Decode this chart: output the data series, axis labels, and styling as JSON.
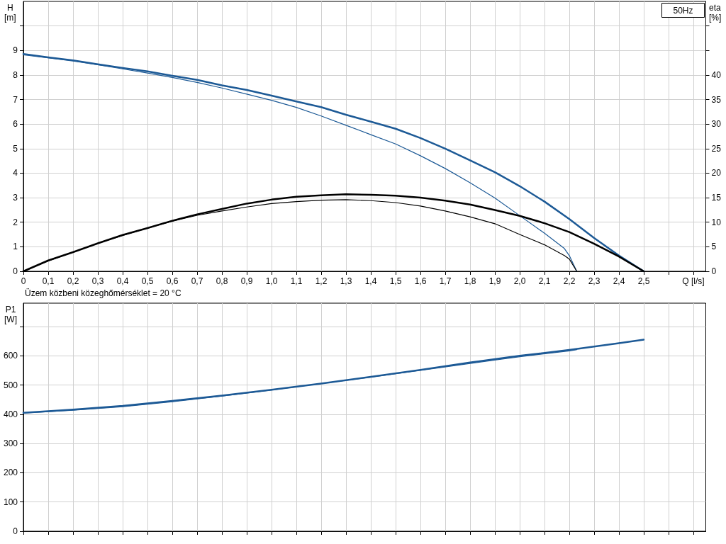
{
  "chart_data": [
    {
      "type": "line",
      "ylabel": "H [m]",
      "y2label": "eta [%]",
      "xlabel": "Q [l/s]",
      "annotations": [
        "50Hz",
        "Üzem közbeni közeghőmérséklet = 20 °C"
      ],
      "xlim": [
        0,
        2.75
      ],
      "ylim": [
        0,
        11
      ],
      "y2lim": [
        0,
        55
      ],
      "xticks": [
        {
          "value": 0,
          "label": "0"
        },
        {
          "value": 0.1,
          "label": "0,1"
        },
        {
          "value": 0.2,
          "label": "0,2"
        },
        {
          "value": 0.3,
          "label": "0,3"
        },
        {
          "value": 0.4,
          "label": "0,4"
        },
        {
          "value": 0.5,
          "label": "0,5"
        },
        {
          "value": 0.6,
          "label": "0,6"
        },
        {
          "value": 0.7,
          "label": "0,7"
        },
        {
          "value": 0.8,
          "label": "0,8"
        },
        {
          "value": 0.9,
          "label": "0,9"
        },
        {
          "value": 1.0,
          "label": "1,0"
        },
        {
          "value": 1.1,
          "label": "1,1"
        },
        {
          "value": 1.2,
          "label": "1,2"
        },
        {
          "value": 1.3,
          "label": "1,3"
        },
        {
          "value": 1.4,
          "label": "1,4"
        },
        {
          "value": 1.5,
          "label": "1,5"
        },
        {
          "value": 1.6,
          "label": "1,6"
        },
        {
          "value": 1.7,
          "label": "1,7"
        },
        {
          "value": 1.8,
          "label": "1,8"
        },
        {
          "value": 1.9,
          "label": "1,9"
        },
        {
          "value": 2.0,
          "label": "2,0"
        },
        {
          "value": 2.1,
          "label": "2,1"
        },
        {
          "value": 2.2,
          "label": "2,2"
        },
        {
          "value": 2.3,
          "label": "2,3"
        },
        {
          "value": 2.4,
          "label": "2,4"
        },
        {
          "value": 2.5,
          "label": "2,5"
        },
        {
          "value": 2.6,
          "label": null
        },
        {
          "value": 2.7,
          "label": null
        }
      ],
      "yticks": [
        0,
        1,
        2,
        3,
        4,
        5,
        6,
        7,
        8,
        9,
        {
          "value": 10,
          "label": null
        }
      ],
      "y2ticks": [
        0,
        5,
        10,
        15,
        20,
        25,
        30,
        35,
        40,
        {
          "value": 45,
          "label": null
        },
        {
          "value": 50,
          "label": null
        }
      ],
      "grid": true,
      "marker": "none",
      "line_style": "solid",
      "series": [
        {
          "color": "#1d5a96",
          "x": [
            0,
            0.1,
            0.2,
            0.3,
            0.4,
            0.5,
            0.6,
            0.7,
            0.8,
            0.9,
            1.0,
            1.1,
            1.2,
            1.3,
            1.4,
            1.5,
            1.6,
            1.7,
            1.8,
            1.9,
            2.0,
            2.1,
            2.2,
            2.3,
            2.4,
            2.5
          ],
          "values": [
            8.86,
            8.72,
            8.6,
            8.44,
            8.29,
            8.15,
            7.97,
            7.8,
            7.58,
            7.39,
            7.16,
            6.92,
            6.69,
            6.38,
            6.1,
            5.81,
            5.43,
            5.0,
            4.52,
            4.04,
            3.47,
            2.84,
            2.13,
            1.36,
            0.64,
            0
          ]
        },
        {
          "color": "#1d5a96",
          "x": [
            0,
            0.1,
            0.2,
            0.3,
            0.4,
            0.5,
            0.6,
            0.7,
            0.8,
            0.9,
            1.0,
            1.1,
            1.2,
            1.3,
            1.4,
            1.5,
            1.6,
            1.7,
            1.8,
            1.9,
            2.0,
            2.1,
            2.18,
            2.2,
            2.23
          ],
          "values": [
            8.82,
            8.7,
            8.57,
            8.42,
            8.25,
            8.08,
            7.9,
            7.7,
            7.47,
            7.22,
            6.97,
            6.68,
            6.33,
            5.95,
            5.57,
            5.19,
            4.71,
            4.19,
            3.61,
            2.99,
            2.27,
            1.55,
            0.93,
            0.64,
            0
          ]
        },
        {
          "color": "#000000",
          "axis": "y2",
          "x": [
            0,
            0.1,
            0.2,
            0.3,
            0.4,
            0.5,
            0.6,
            0.7,
            0.8,
            0.9,
            1.0,
            1.1,
            1.2,
            1.3,
            1.4,
            1.5,
            1.6,
            1.7,
            1.8,
            1.9,
            2.0,
            2.1,
            2.2,
            2.3,
            2.4,
            2.5
          ],
          "values": [
            0,
            2.2,
            3.9,
            5.7,
            7.4,
            8.8,
            10.3,
            11.6,
            12.7,
            13.8,
            14.6,
            15.2,
            15.5,
            15.7,
            15.6,
            15.4,
            15.0,
            14.4,
            13.6,
            12.5,
            11.3,
            9.8,
            8.0,
            5.6,
            3.0,
            0
          ]
        },
        {
          "color": "#000000",
          "axis": "y2",
          "x": [
            0,
            0.1,
            0.2,
            0.3,
            0.4,
            0.5,
            0.6,
            0.7,
            0.8,
            0.9,
            1.0,
            1.1,
            1.2,
            1.3,
            1.4,
            1.5,
            1.6,
            1.7,
            1.8,
            1.9,
            2.0,
            2.1,
            2.18,
            2.2,
            2.23
          ],
          "values": [
            0,
            2.1,
            3.9,
            5.7,
            7.3,
            8.8,
            10.2,
            11.4,
            12.3,
            13.1,
            13.8,
            14.2,
            14.5,
            14.6,
            14.4,
            14.0,
            13.3,
            12.3,
            11.1,
            9.7,
            7.5,
            5.4,
            3.2,
            2.5,
            0
          ]
        }
      ]
    },
    {
      "type": "line",
      "ylabel": "P1 [W]",
      "tick_labels": "y",
      "xlim": [
        0,
        2.75
      ],
      "ylim": [
        0,
        780
      ],
      "xticks": [
        0,
        0.1,
        0.2,
        0.3,
        0.4,
        0.5,
        0.6,
        0.7,
        0.8,
        0.9,
        1.0,
        1.1,
        1.2,
        1.3,
        1.4,
        1.5,
        1.6,
        1.7,
        1.8,
        1.9,
        2.0,
        2.1,
        2.2,
        2.3,
        2.4,
        2.5,
        2.6,
        2.7
      ],
      "yticks": [
        0,
        100,
        200,
        300,
        400,
        500,
        600,
        {
          "value": 700,
          "label": null
        }
      ],
      "grid": true,
      "marker": "none",
      "line_style": "solid",
      "series": [
        {
          "color": "#1d5a96",
          "x": [
            0,
            0.2,
            0.4,
            0.6,
            0.8,
            1.0,
            1.2,
            1.4,
            1.6,
            1.8,
            2.0,
            2.2,
            2.4,
            2.5
          ],
          "values": [
            405,
            416,
            429,
            446,
            464,
            484,
            505,
            528,
            552,
            577,
            600,
            620,
            643,
            655
          ]
        },
        {
          "color": "#1d5a96",
          "x": [
            0,
            0.2,
            0.4,
            0.6,
            0.8,
            1.0,
            1.2,
            1.4,
            1.6,
            1.8,
            2.0,
            2.2,
            2.23
          ],
          "values": [
            404,
            414,
            426,
            443,
            462,
            483,
            505,
            527,
            550,
            574,
            597,
            617,
            621
          ]
        }
      ]
    }
  ]
}
